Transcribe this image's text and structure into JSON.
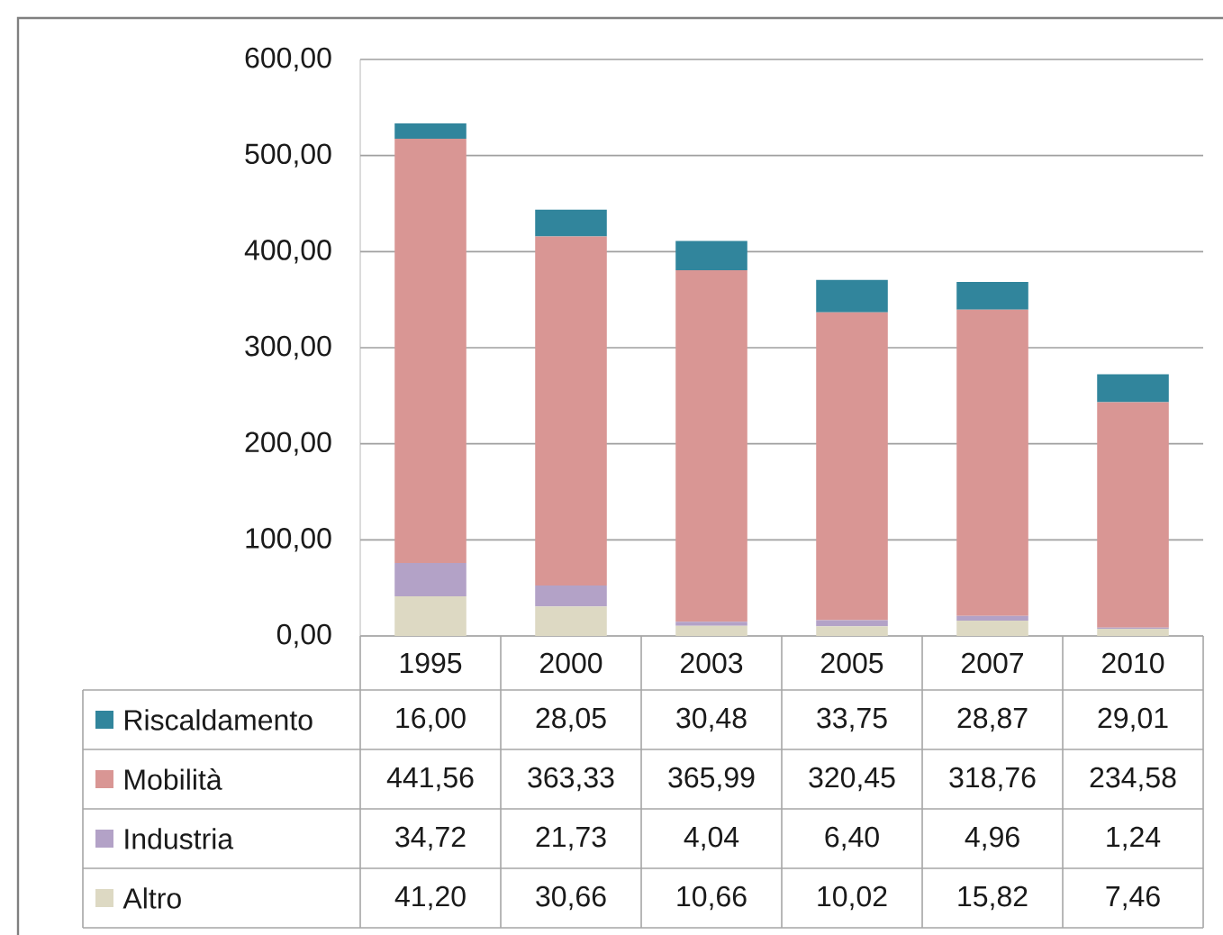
{
  "chart_data": {
    "type": "bar",
    "stacked": true,
    "categories": [
      "1995",
      "2000",
      "2003",
      "2005",
      "2007",
      "2010"
    ],
    "series": [
      {
        "name": "Altro",
        "color": "#ddd9c3",
        "values": [
          41.2,
          30.66,
          10.66,
          10.02,
          15.82,
          7.46
        ],
        "value_labels": [
          "41,20",
          "30,66",
          "10,66",
          "10,02",
          "15,82",
          "7,46"
        ]
      },
      {
        "name": "Industria",
        "color": "#b3a2c7",
        "values": [
          34.72,
          21.73,
          4.04,
          6.4,
          4.96,
          1.24
        ],
        "value_labels": [
          "34,72",
          "21,73",
          "4,04",
          "6,40",
          "4,96",
          "1,24"
        ]
      },
      {
        "name": "Mobilità",
        "color": "#d99694",
        "values": [
          441.56,
          363.33,
          365.99,
          320.45,
          318.76,
          234.58
        ],
        "value_labels": [
          "441,56",
          "363,33",
          "365,99",
          "320,45",
          "318,76",
          "234,58"
        ]
      },
      {
        "name": "Riscaldamento",
        "color": "#31859c",
        "values": [
          16.0,
          28.05,
          30.48,
          33.75,
          28.87,
          29.01
        ],
        "value_labels": [
          "16,00",
          "28,05",
          "30,48",
          "33,75",
          "28,87",
          "29,01"
        ]
      }
    ],
    "ylim": [
      0,
      600
    ],
    "yticks": [
      {
        "value": 0,
        "label": "0,00"
      },
      {
        "value": 100,
        "label": "100,00"
      },
      {
        "value": 200,
        "label": "200,00"
      },
      {
        "value": 300,
        "label": "300,00"
      },
      {
        "value": 400,
        "label": "400,00"
      },
      {
        "value": 500,
        "label": "500,00"
      },
      {
        "value": 600,
        "label": "600,00"
      }
    ],
    "grid": "y",
    "legend": "bottom"
  }
}
